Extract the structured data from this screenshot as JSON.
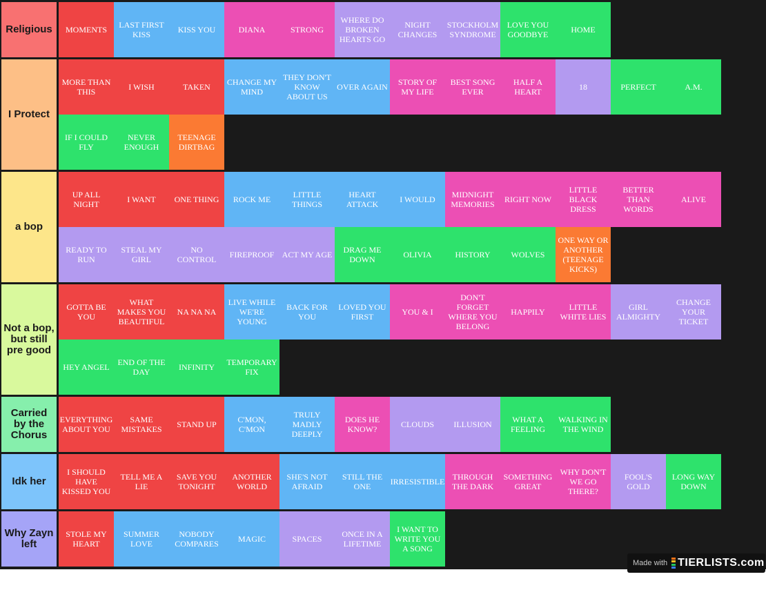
{
  "colors": {
    "red": "#ef4444",
    "blue": "#60b5f5",
    "pink": "#ec4fb4",
    "purple": "#b39af0",
    "green": "#2ee26c",
    "orange": "#fb7a33",
    "background": "#1a1a1a"
  },
  "tiers": [
    {
      "label": "Religious",
      "color": "#f87171",
      "items": [
        {
          "text": "MOMENTS",
          "color": "red"
        },
        {
          "text": "LAST FIRST KISS",
          "color": "blue"
        },
        {
          "text": "KISS YOU",
          "color": "blue"
        },
        {
          "text": "DIANA",
          "color": "pink"
        },
        {
          "text": "STRONG",
          "color": "pink"
        },
        {
          "text": "WHERE DO BROKEN HEARTS GO",
          "color": "purple"
        },
        {
          "text": "NIGHT CHANGES",
          "color": "purple"
        },
        {
          "text": "STOCKHOLM SYNDROME",
          "color": "purple"
        },
        {
          "text": "LOVE YOU GOODBYE",
          "color": "green"
        },
        {
          "text": "HOME",
          "color": "green"
        }
      ]
    },
    {
      "label": "I Protect",
      "color": "#fdbf86",
      "items": [
        {
          "text": "MORE THAN THIS",
          "color": "red"
        },
        {
          "text": "I WISH",
          "color": "red"
        },
        {
          "text": "TAKEN",
          "color": "red"
        },
        {
          "text": "CHANGE MY MIND",
          "color": "blue"
        },
        {
          "text": "THEY DON'T KNOW ABOUT US",
          "color": "blue"
        },
        {
          "text": "OVER AGAIN",
          "color": "blue"
        },
        {
          "text": "STORY OF MY LIFE",
          "color": "pink"
        },
        {
          "text": "BEST SONG EVER",
          "color": "pink"
        },
        {
          "text": "HALF A HEART",
          "color": "pink"
        },
        {
          "text": "18",
          "color": "purple"
        },
        {
          "text": "PERFECT",
          "color": "green"
        },
        {
          "text": "A.M.",
          "color": "green"
        },
        {
          "text": "IF I COULD FLY",
          "color": "green"
        },
        {
          "text": "NEVER ENOUGH",
          "color": "green"
        },
        {
          "text": "TEENAGE DIRTBAG",
          "color": "orange"
        }
      ]
    },
    {
      "label": "a bop",
      "color": "#fde68a",
      "items": [
        {
          "text": "UP ALL NIGHT",
          "color": "red"
        },
        {
          "text": "I WANT",
          "color": "red"
        },
        {
          "text": "ONE THING",
          "color": "red"
        },
        {
          "text": "ROCK ME",
          "color": "blue"
        },
        {
          "text": "LITTLE THINGS",
          "color": "blue"
        },
        {
          "text": "HEART ATTACK",
          "color": "blue"
        },
        {
          "text": "I WOULD",
          "color": "blue"
        },
        {
          "text": "MIDNIGHT MEMORIES",
          "color": "pink"
        },
        {
          "text": "RIGHT NOW",
          "color": "pink"
        },
        {
          "text": "LITTLE BLACK DRESS",
          "color": "pink"
        },
        {
          "text": "BETTER THAN WORDS",
          "color": "pink"
        },
        {
          "text": "ALIVE",
          "color": "pink"
        },
        {
          "text": "READY TO RUN",
          "color": "purple"
        },
        {
          "text": "STEAL MY GIRL",
          "color": "purple"
        },
        {
          "text": "NO CONTROL",
          "color": "purple"
        },
        {
          "text": "FIREPROOF",
          "color": "purple"
        },
        {
          "text": "ACT MY AGE",
          "color": "purple"
        },
        {
          "text": "DRAG ME DOWN",
          "color": "green"
        },
        {
          "text": "OLIVIA",
          "color": "green"
        },
        {
          "text": "HISTORY",
          "color": "green"
        },
        {
          "text": "WOLVES",
          "color": "green"
        },
        {
          "text": "ONE WAY OR ANOTHER (TEENAGE KICKS)",
          "color": "orange"
        }
      ]
    },
    {
      "label": "Not a bop, but still pre good",
      "color": "#d9f99d",
      "items": [
        {
          "text": "GOTTA BE YOU",
          "color": "red"
        },
        {
          "text": "WHAT MAKES YOU BEAUTIFUL",
          "color": "red"
        },
        {
          "text": "NA NA NA",
          "color": "red"
        },
        {
          "text": "LIVE WHILE WE'RE YOUNG",
          "color": "blue"
        },
        {
          "text": "BACK FOR YOU",
          "color": "blue"
        },
        {
          "text": "LOVED YOU FIRST",
          "color": "blue"
        },
        {
          "text": "YOU & I",
          "color": "pink"
        },
        {
          "text": "DON'T FORGET WHERE YOU BELONG",
          "color": "pink"
        },
        {
          "text": "HAPPILY",
          "color": "pink"
        },
        {
          "text": "LITTLE WHITE LIES",
          "color": "pink"
        },
        {
          "text": "GIRL ALMIGHTY",
          "color": "purple"
        },
        {
          "text": "CHANGE YOUR TICKET",
          "color": "purple"
        },
        {
          "text": "HEY ANGEL",
          "color": "green"
        },
        {
          "text": "END OF THE DAY",
          "color": "green"
        },
        {
          "text": "INFINITY",
          "color": "green"
        },
        {
          "text": "TEMPORARY FIX",
          "color": "green"
        }
      ]
    },
    {
      "label": "Carried by the Chorus",
      "color": "#86efac",
      "items": [
        {
          "text": "EVERYTHING ABOUT YOU",
          "color": "red"
        },
        {
          "text": "SAME MISTAKES",
          "color": "red"
        },
        {
          "text": "STAND UP",
          "color": "red"
        },
        {
          "text": "C'MON, C'MON",
          "color": "blue"
        },
        {
          "text": "TRULY MADLY DEEPLY",
          "color": "blue"
        },
        {
          "text": "DOES HE KNOW?",
          "color": "pink"
        },
        {
          "text": "CLOUDS",
          "color": "purple"
        },
        {
          "text": "ILLUSION",
          "color": "purple"
        },
        {
          "text": "WHAT A FEELING",
          "color": "green"
        },
        {
          "text": "WALKING IN THE WIND",
          "color": "green"
        }
      ]
    },
    {
      "label": "Idk her",
      "color": "#7dc4fb",
      "items": [
        {
          "text": "I SHOULD HAVE KISSED YOU",
          "color": "red"
        },
        {
          "text": "TELL ME A LIE",
          "color": "red"
        },
        {
          "text": "SAVE YOU TONIGHT",
          "color": "red"
        },
        {
          "text": "ANOTHER WORLD",
          "color": "red"
        },
        {
          "text": "SHE'S NOT AFRAID",
          "color": "blue"
        },
        {
          "text": "STILL THE ONE",
          "color": "blue"
        },
        {
          "text": "IRRESISTIBLE",
          "color": "blue"
        },
        {
          "text": "THROUGH THE DARK",
          "color": "pink"
        },
        {
          "text": "SOMETHING GREAT",
          "color": "pink"
        },
        {
          "text": "WHY DON'T WE GO THERE?",
          "color": "pink"
        },
        {
          "text": "FOOL'S GOLD",
          "color": "purple"
        },
        {
          "text": "LONG WAY DOWN",
          "color": "green"
        }
      ]
    },
    {
      "label": "Why Zayn left",
      "color": "#a5a4f7",
      "items": [
        {
          "text": "STOLE MY HEART",
          "color": "red"
        },
        {
          "text": "SUMMER LOVE",
          "color": "blue"
        },
        {
          "text": "NOBODY COMPARES",
          "color": "blue"
        },
        {
          "text": "MAGIC",
          "color": "blue"
        },
        {
          "text": "SPACES",
          "color": "purple"
        },
        {
          "text": "ONCE IN A LIFETIME",
          "color": "purple"
        },
        {
          "text": "I WANT TO WRITE YOU A SONG",
          "color": "green"
        }
      ]
    }
  ],
  "badge": {
    "made_with": "Made with",
    "brand": "TIERLISTS.com",
    "mark_colors": [
      "#f97316",
      "#fbbf24",
      "#22c55e",
      "#3b82f6"
    ]
  }
}
